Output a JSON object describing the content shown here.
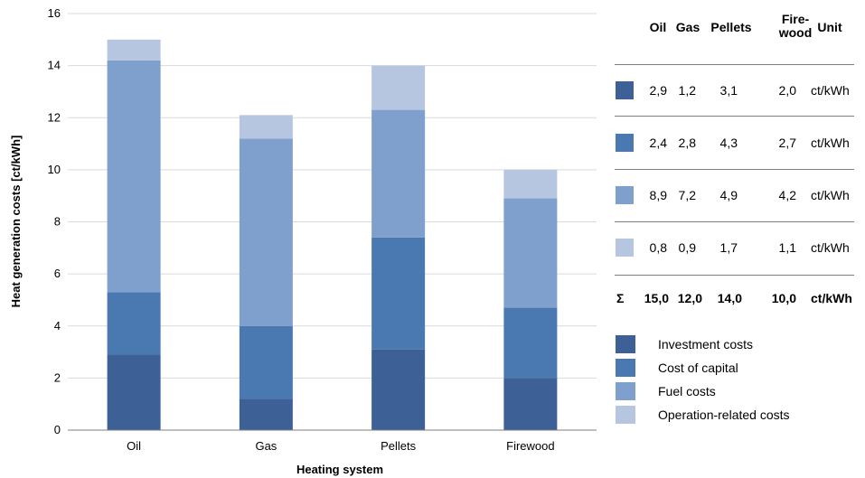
{
  "chart_data": {
    "type": "bar",
    "stacked": true,
    "categories": [
      "Oil",
      "Gas",
      "Pellets",
      "Firewood"
    ],
    "series": [
      {
        "name": "Investment costs",
        "values": [
          2.9,
          1.2,
          3.1,
          2.0
        ],
        "color": "#3d6096"
      },
      {
        "name": "Cost of capital",
        "values": [
          2.4,
          2.8,
          4.3,
          2.7
        ],
        "color": "#4a78b1"
      },
      {
        "name": "Fuel costs",
        "values": [
          8.9,
          7.2,
          4.9,
          4.2
        ],
        "color": "#7f9fcc"
      },
      {
        "name": "Operation-related costs",
        "values": [
          0.8,
          0.9,
          1.7,
          1.1
        ],
        "color": "#b6c6e0"
      }
    ],
    "xlabel": "Heating system",
    "ylabel": "Heat generation costs [ct/kWh]",
    "ylim": [
      0,
      16
    ],
    "yticks": [
      "0",
      "2",
      "4",
      "6",
      "8",
      "10",
      "12",
      "14",
      "16"
    ],
    "grid": true,
    "legend": "right"
  },
  "table": {
    "headers": [
      "Oil",
      "Gas",
      "Pellets",
      "Fire-\nwood",
      "Unit"
    ],
    "rows": [
      {
        "cells": [
          "2,9",
          "1,2",
          "3,1",
          "2,0"
        ],
        "unit": "ct/kWh"
      },
      {
        "cells": [
          "2,4",
          "2,8",
          "4,3",
          "2,7"
        ],
        "unit": "ct/kWh"
      },
      {
        "cells": [
          "8,9",
          "7,2",
          "4,9",
          "4,2"
        ],
        "unit": "ct/kWh"
      },
      {
        "cells": [
          "0,8",
          "0,9",
          "1,7",
          "1,1"
        ],
        "unit": "ct/kWh"
      }
    ],
    "sum": {
      "symbol": "Σ",
      "cells": [
        "15,0",
        "12,0",
        "14,0",
        "10,0"
      ],
      "unit": "ct/kWh"
    }
  }
}
